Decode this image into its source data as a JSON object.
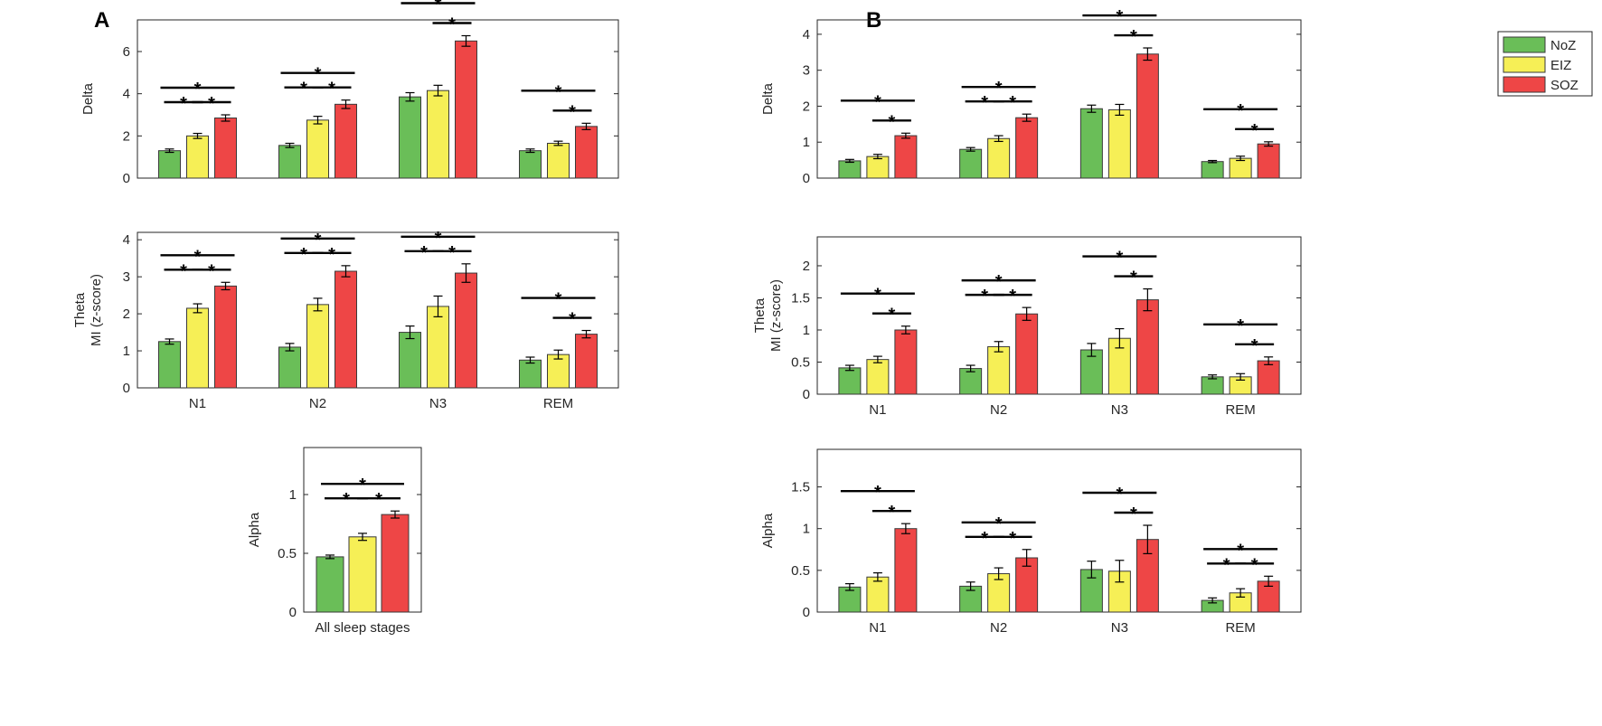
{
  "panel_labels": [
    "A",
    "B"
  ],
  "legend": {
    "entries": [
      {
        "name": "NoZ",
        "color": "#6abe58"
      },
      {
        "name": "EIZ",
        "color": "#f6ef56"
      },
      {
        "name": "SOZ",
        "color": "#ee4646"
      }
    ]
  },
  "chart_data": [
    {
      "id": "A-delta",
      "type": "bar",
      "panel": "A",
      "ylabel": [
        "Delta"
      ],
      "ylim": [
        0,
        7.5
      ],
      "yticks": [
        0,
        2,
        4,
        6
      ],
      "xlabel": "",
      "categories": [
        "N1",
        "N2",
        "N3",
        "REM"
      ],
      "show_xticklabels": false,
      "series": [
        {
          "name": "NoZ",
          "values": [
            1.3,
            1.55,
            3.85,
            1.3
          ],
          "errors": [
            0.08,
            0.1,
            0.2,
            0.08
          ]
        },
        {
          "name": "EIZ",
          "values": [
            2.0,
            2.75,
            4.15,
            1.65
          ],
          "errors": [
            0.12,
            0.18,
            0.25,
            0.1
          ]
        },
        {
          "name": "SOZ",
          "values": [
            2.85,
            3.5,
            6.5,
            2.45
          ],
          "errors": [
            0.15,
            0.2,
            0.25,
            0.15
          ]
        }
      ],
      "significance": [
        {
          "category": 0,
          "pairs": [
            [
              0,
              1
            ],
            [
              1,
              2
            ],
            [
              0,
              2
            ]
          ],
          "label": "*"
        },
        {
          "category": 1,
          "pairs": [
            [
              0,
              1
            ],
            [
              1,
              2
            ],
            [
              0,
              2
            ]
          ],
          "label": "*"
        },
        {
          "category": 2,
          "pairs": [
            [
              1,
              2
            ],
            [
              0,
              2
            ]
          ],
          "label": "*"
        },
        {
          "category": 3,
          "pairs": [
            [
              1,
              2
            ],
            [
              0,
              2
            ]
          ],
          "label": "*"
        }
      ]
    },
    {
      "id": "A-theta",
      "type": "bar",
      "panel": "A",
      "ylabel": [
        "Theta",
        "MI (z-score)"
      ],
      "ylim": [
        0,
        4.2
      ],
      "yticks": [
        0,
        1,
        2,
        3,
        4
      ],
      "xlabel": "",
      "categories": [
        "N1",
        "N2",
        "N3",
        "REM"
      ],
      "show_xticklabels": true,
      "series": [
        {
          "name": "NoZ",
          "values": [
            1.25,
            1.1,
            1.5,
            0.75
          ],
          "errors": [
            0.07,
            0.1,
            0.17,
            0.08
          ]
        },
        {
          "name": "EIZ",
          "values": [
            2.15,
            2.25,
            2.2,
            0.9
          ],
          "errors": [
            0.12,
            0.17,
            0.28,
            0.12
          ]
        },
        {
          "name": "SOZ",
          "values": [
            2.75,
            3.15,
            3.1,
            1.45
          ],
          "errors": [
            0.1,
            0.15,
            0.25,
            0.1
          ]
        }
      ],
      "significance": [
        {
          "category": 0,
          "pairs": [
            [
              0,
              1
            ],
            [
              1,
              2
            ],
            [
              0,
              2
            ]
          ],
          "label": "*"
        },
        {
          "category": 1,
          "pairs": [
            [
              0,
              1
            ],
            [
              1,
              2
            ],
            [
              0,
              2
            ]
          ],
          "label": "*"
        },
        {
          "category": 2,
          "pairs": [
            [
              0,
              1
            ],
            [
              1,
              2
            ],
            [
              0,
              2
            ]
          ],
          "label": "*"
        },
        {
          "category": 3,
          "pairs": [
            [
              1,
              2
            ],
            [
              0,
              2
            ]
          ],
          "label": "*"
        }
      ]
    },
    {
      "id": "A-alpha",
      "type": "bar",
      "panel": "A",
      "ylabel": [
        "Alpha"
      ],
      "ylim": [
        0,
        1.4
      ],
      "yticks": [
        0,
        0.5,
        1
      ],
      "xlabel": "",
      "categories": [
        "All sleep stages"
      ],
      "show_xticklabels": true,
      "series": [
        {
          "name": "NoZ",
          "values": [
            0.47
          ],
          "errors": [
            0.015
          ]
        },
        {
          "name": "EIZ",
          "values": [
            0.64
          ],
          "errors": [
            0.03
          ]
        },
        {
          "name": "SOZ",
          "values": [
            0.83
          ],
          "errors": [
            0.03
          ]
        }
      ],
      "significance": [
        {
          "category": 0,
          "pairs": [
            [
              0,
              1
            ],
            [
              1,
              2
            ],
            [
              0,
              2
            ]
          ],
          "label": "*"
        }
      ]
    },
    {
      "id": "B-delta",
      "type": "bar",
      "panel": "B",
      "ylabel": [
        "Delta"
      ],
      "ylim": [
        0,
        4.4
      ],
      "yticks": [
        0,
        1,
        2,
        3,
        4
      ],
      "xlabel": "",
      "categories": [
        "N1",
        "N2",
        "N3",
        "REM"
      ],
      "show_xticklabels": false,
      "series": [
        {
          "name": "NoZ",
          "values": [
            0.48,
            0.8,
            1.93,
            0.46
          ],
          "errors": [
            0.04,
            0.05,
            0.1,
            0.03
          ]
        },
        {
          "name": "EIZ",
          "values": [
            0.6,
            1.1,
            1.9,
            0.55
          ],
          "errors": [
            0.06,
            0.08,
            0.15,
            0.06
          ]
        },
        {
          "name": "SOZ",
          "values": [
            1.18,
            1.68,
            3.45,
            0.95
          ],
          "errors": [
            0.07,
            0.1,
            0.17,
            0.06
          ]
        }
      ],
      "significance": [
        {
          "category": 0,
          "pairs": [
            [
              1,
              2
            ],
            [
              0,
              2
            ]
          ],
          "label": "*"
        },
        {
          "category": 1,
          "pairs": [
            [
              0,
              1
            ],
            [
              1,
              2
            ],
            [
              0,
              2
            ]
          ],
          "label": "*"
        },
        {
          "category": 2,
          "pairs": [
            [
              1,
              2
            ],
            [
              0,
              2
            ]
          ],
          "label": "*"
        },
        {
          "category": 3,
          "pairs": [
            [
              1,
              2
            ],
            [
              0,
              2
            ]
          ],
          "label": "*"
        }
      ]
    },
    {
      "id": "B-theta",
      "type": "bar",
      "panel": "B",
      "ylabel": [
        "Theta",
        "MI (z-score)"
      ],
      "ylim": [
        0,
        2.45
      ],
      "yticks": [
        0,
        0.5,
        1,
        1.5,
        2
      ],
      "xlabel": "",
      "categories": [
        "N1",
        "N2",
        "N3",
        "REM"
      ],
      "show_xticklabels": true,
      "series": [
        {
          "name": "NoZ",
          "values": [
            0.41,
            0.4,
            0.69,
            0.27
          ],
          "errors": [
            0.04,
            0.05,
            0.1,
            0.03
          ]
        },
        {
          "name": "EIZ",
          "values": [
            0.54,
            0.74,
            0.87,
            0.27
          ],
          "errors": [
            0.05,
            0.08,
            0.15,
            0.05
          ]
        },
        {
          "name": "SOZ",
          "values": [
            1.0,
            1.25,
            1.47,
            0.52
          ],
          "errors": [
            0.06,
            0.1,
            0.17,
            0.06
          ]
        }
      ],
      "significance": [
        {
          "category": 0,
          "pairs": [
            [
              1,
              2
            ],
            [
              0,
              2
            ]
          ],
          "label": "*"
        },
        {
          "category": 1,
          "pairs": [
            [
              0,
              1
            ],
            [
              1,
              2
            ],
            [
              0,
              2
            ]
          ],
          "label": "*"
        },
        {
          "category": 2,
          "pairs": [
            [
              1,
              2
            ],
            [
              0,
              2
            ]
          ],
          "label": "*"
        },
        {
          "category": 3,
          "pairs": [
            [
              1,
              2
            ],
            [
              0,
              2
            ]
          ],
          "label": "*"
        }
      ]
    },
    {
      "id": "B-alpha",
      "type": "bar",
      "panel": "B",
      "ylabel": [
        "Alpha"
      ],
      "ylim": [
        0,
        1.95
      ],
      "yticks": [
        0,
        0.5,
        1,
        1.5
      ],
      "xlabel": "",
      "categories": [
        "N1",
        "N2",
        "N3",
        "REM"
      ],
      "show_xticklabels": true,
      "series": [
        {
          "name": "NoZ",
          "values": [
            0.3,
            0.31,
            0.51,
            0.14
          ],
          "errors": [
            0.04,
            0.05,
            0.1,
            0.03
          ]
        },
        {
          "name": "EIZ",
          "values": [
            0.42,
            0.46,
            0.49,
            0.23
          ],
          "errors": [
            0.05,
            0.07,
            0.13,
            0.05
          ]
        },
        {
          "name": "SOZ",
          "values": [
            1.0,
            0.65,
            0.87,
            0.37
          ],
          "errors": [
            0.06,
            0.1,
            0.17,
            0.06
          ]
        }
      ],
      "significance": [
        {
          "category": 0,
          "pairs": [
            [
              1,
              2
            ],
            [
              0,
              2
            ]
          ],
          "label": "*"
        },
        {
          "category": 1,
          "pairs": [
            [
              0,
              1
            ],
            [
              1,
              2
            ],
            [
              0,
              2
            ]
          ],
          "label": "*"
        },
        {
          "category": 2,
          "pairs": [
            [
              1,
              2
            ],
            [
              0,
              2
            ]
          ],
          "label": "*"
        },
        {
          "category": 3,
          "pairs": [
            [
              0,
              1
            ],
            [
              1,
              2
            ],
            [
              0,
              2
            ]
          ],
          "label": "*"
        }
      ]
    }
  ]
}
